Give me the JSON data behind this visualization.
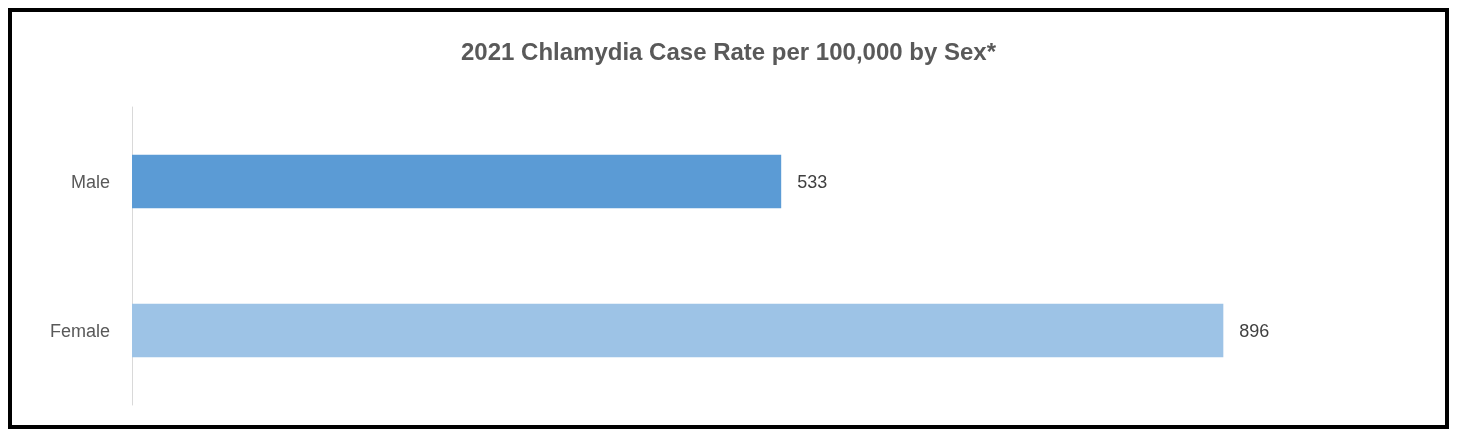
{
  "chart_data": {
    "type": "bar",
    "orientation": "horizontal",
    "title": "2021 Chlamydia Case Rate per 100,000 by Sex*",
    "categories": [
      "Male",
      "Female"
    ],
    "values": [
      533,
      896
    ],
    "colors": [
      "#5b9bd5",
      "#9dc3e6"
    ],
    "data_labels": true
  }
}
